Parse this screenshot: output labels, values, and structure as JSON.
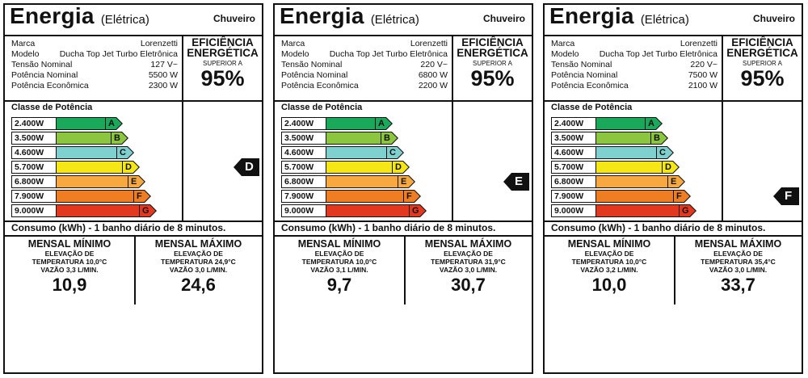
{
  "labels": [
    {
      "title": "Energia",
      "subtitle": "(Elétrica)",
      "product_type": "Chuveiro",
      "specs": [
        {
          "label": "Marca",
          "value": "Lorenzetti"
        },
        {
          "label": "Modelo",
          "value": "Ducha Top Jet Turbo Eletrônica"
        },
        {
          "label": "Tensão Nominal",
          "value": "127 V~"
        },
        {
          "label": "Potência Nominal",
          "value": "5500 W"
        },
        {
          "label": "Potência Econômica",
          "value": "2300 W"
        }
      ],
      "efficiency": {
        "title_line1": "EFICIÊNCIA",
        "title_line2": "ENERGÉTICA",
        "superior": "SUPERIOR A",
        "percent": "95%"
      },
      "classes_title": "Classe de Potência",
      "classes": [
        {
          "power": "2.400W",
          "letter": "A",
          "color": "#1aa85a"
        },
        {
          "power": "3.500W",
          "letter": "B",
          "color": "#8cc63f"
        },
        {
          "power": "4.600W",
          "letter": "C",
          "color": "#7fd1cf"
        },
        {
          "power": "5.700W",
          "letter": "D",
          "color": "#f5e615"
        },
        {
          "power": "6.800W",
          "letter": "E",
          "color": "#f7a940"
        },
        {
          "power": "7.900W",
          "letter": "F",
          "color": "#ef7d22"
        },
        {
          "power": "9.000W",
          "letter": "G",
          "color": "#e2381f"
        }
      ],
      "selected_class": "D",
      "consumo_text": "Consumo (kWh) - 1 banho diário de 8 minutos.",
      "min": {
        "head": "MENSAL MÍNIMO",
        "line1": "ELEVAÇÃO DE",
        "line2": "TEMPERATURA 10,0°C",
        "line3": "VAZÃO 3,3 L/MIN.",
        "value": "10,9"
      },
      "max": {
        "head": "MENSAL MÁXIMO",
        "line1": "ELEVAÇÃO DE",
        "line2": "TEMPERATURA 24,9°C",
        "line3": "VAZÃO 3,0 L/MIN.",
        "value": "24,6"
      }
    },
    {
      "title": "Energia",
      "subtitle": "(Elétrica)",
      "product_type": "Chuveiro",
      "specs": [
        {
          "label": "Marca",
          "value": "Lorenzetti"
        },
        {
          "label": "Modelo",
          "value": "Ducha Top Jet Turbo Eletrônica"
        },
        {
          "label": "Tensão Nominal",
          "value": "220 V~"
        },
        {
          "label": "Potência Nominal",
          "value": "6800 W"
        },
        {
          "label": "Potência Econômica",
          "value": "2200 W"
        }
      ],
      "efficiency": {
        "title_line1": "EFICIÊNCIA",
        "title_line2": "ENERGÉTICA",
        "superior": "SUPERIOR A",
        "percent": "95%"
      },
      "classes_title": "Classe de Potência",
      "classes": [
        {
          "power": "2.400W",
          "letter": "A",
          "color": "#1aa85a"
        },
        {
          "power": "3.500W",
          "letter": "B",
          "color": "#8cc63f"
        },
        {
          "power": "4.600W",
          "letter": "C",
          "color": "#7fd1cf"
        },
        {
          "power": "5.700W",
          "letter": "D",
          "color": "#f5e615"
        },
        {
          "power": "6.800W",
          "letter": "E",
          "color": "#f7a940"
        },
        {
          "power": "7.900W",
          "letter": "F",
          "color": "#ef7d22"
        },
        {
          "power": "9.000W",
          "letter": "G",
          "color": "#e2381f"
        }
      ],
      "selected_class": "E",
      "consumo_text": "Consumo (kWh) - 1 banho diário de 8 minutos.",
      "min": {
        "head": "MENSAL MÍNIMO",
        "line1": "ELEVAÇÃO DE",
        "line2": "TEMPERATURA 10,0°C",
        "line3": "VAZÃO 3,1 L/MIN.",
        "value": "9,7"
      },
      "max": {
        "head": "MENSAL MÁXIMO",
        "line1": "ELEVAÇÃO DE",
        "line2": "TEMPERATURA 31,9°C",
        "line3": "VAZÃO 3,0 L/MIN.",
        "value": "30,7"
      }
    },
    {
      "title": "Energia",
      "subtitle": "(Elétrica)",
      "product_type": "Chuveiro",
      "specs": [
        {
          "label": "Marca",
          "value": "Lorenzetti"
        },
        {
          "label": "Modelo",
          "value": "Ducha Top Jet Turbo Eletrônica"
        },
        {
          "label": "Tensão Nominal",
          "value": "220 V~"
        },
        {
          "label": "Potência Nominal",
          "value": "7500 W"
        },
        {
          "label": "Potência Econômica",
          "value": "2100 W"
        }
      ],
      "efficiency": {
        "title_line1": "EFICIÊNCIA",
        "title_line2": "ENERGÉTICA",
        "superior": "SUPERIOR A",
        "percent": "95%"
      },
      "classes_title": "Classe de Potência",
      "classes": [
        {
          "power": "2.400W",
          "letter": "A",
          "color": "#1aa85a"
        },
        {
          "power": "3.500W",
          "letter": "B",
          "color": "#8cc63f"
        },
        {
          "power": "4.600W",
          "letter": "C",
          "color": "#7fd1cf"
        },
        {
          "power": "5.700W",
          "letter": "D",
          "color": "#f5e615"
        },
        {
          "power": "6.800W",
          "letter": "E",
          "color": "#f7a940"
        },
        {
          "power": "7.900W",
          "letter": "F",
          "color": "#ef7d22"
        },
        {
          "power": "9.000W",
          "letter": "G",
          "color": "#e2381f"
        }
      ],
      "selected_class": "F",
      "consumo_text": "Consumo (kWh) - 1 banho diário de 8 minutos.",
      "min": {
        "head": "MENSAL MÍNIMO",
        "line1": "ELEVAÇÃO DE",
        "line2": "TEMPERATURA 10,0°C",
        "line3": "VAZÃO 3,2 L/MIN.",
        "value": "10,0"
      },
      "max": {
        "head": "MENSAL MÁXIMO",
        "line1": "ELEVAÇÃO DE",
        "line2": "TEMPERATURA 35,4°C",
        "line3": "VAZÃO 3,0 L/MIN.",
        "value": "33,7"
      }
    }
  ]
}
